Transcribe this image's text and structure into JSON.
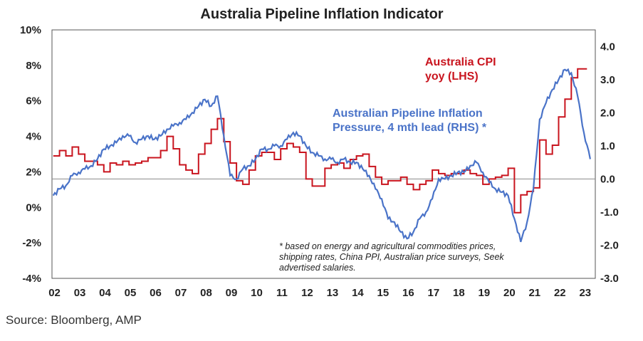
{
  "chart_data": {
    "type": "line",
    "title": "Australia Pipeline Inflation Indicator",
    "x_ticks": [
      "02",
      "03",
      "04",
      "05",
      "06",
      "07",
      "08",
      "09",
      "10",
      "11",
      "12",
      "13",
      "14",
      "15",
      "16",
      "17",
      "18",
      "19",
      "20",
      "21",
      "22",
      "23"
    ],
    "y_left": {
      "ticks": [
        "10%",
        "8%",
        "6%",
        "4%",
        "2%",
        "0%",
        "-2%",
        "-4%"
      ],
      "min": -4,
      "max": 10
    },
    "y_right": {
      "ticks": [
        "4.0",
        "3.0",
        "2.0",
        "1.0",
        "0.0",
        "-1.0",
        "-2.0",
        "-3.0"
      ],
      "min": -3,
      "max": 4.5
    },
    "baseline_right": 0.0,
    "series": [
      {
        "name": "Australia CPI yoy (LHS)",
        "label_lines": [
          "Australia CPI",
          "yoy (LHS)"
        ],
        "axis": "left",
        "color": "#c9141e",
        "step": true,
        "x": [
          2002.0,
          2002.25,
          2002.5,
          2002.75,
          2003.0,
          2003.25,
          2003.5,
          2003.75,
          2004.0,
          2004.25,
          2004.5,
          2004.75,
          2005.0,
          2005.25,
          2005.5,
          2005.75,
          2006.0,
          2006.25,
          2006.5,
          2006.75,
          2007.0,
          2007.25,
          2007.5,
          2007.75,
          2008.0,
          2008.25,
          2008.5,
          2008.75,
          2009.0,
          2009.25,
          2009.5,
          2009.75,
          2010.0,
          2010.25,
          2010.5,
          2010.75,
          2011.0,
          2011.25,
          2011.5,
          2011.75,
          2012.0,
          2012.25,
          2012.5,
          2012.75,
          2013.0,
          2013.25,
          2013.5,
          2013.75,
          2014.0,
          2014.25,
          2014.5,
          2014.75,
          2015.0,
          2015.25,
          2015.5,
          2015.75,
          2016.0,
          2016.25,
          2016.5,
          2016.75,
          2017.0,
          2017.25,
          2017.5,
          2017.75,
          2018.0,
          2018.25,
          2018.5,
          2018.75,
          2019.0,
          2019.25,
          2019.5,
          2019.75,
          2020.0,
          2020.25,
          2020.5,
          2020.75,
          2021.0,
          2021.25,
          2021.5,
          2021.75,
          2022.0,
          2022.25,
          2022.5,
          2022.75,
          2023.0
        ],
        "values": [
          2.9,
          3.2,
          2.9,
          3.4,
          3.0,
          2.6,
          2.6,
          2.4,
          2.0,
          2.5,
          2.4,
          2.6,
          2.4,
          2.5,
          2.6,
          2.8,
          2.8,
          3.2,
          4.0,
          3.3,
          2.4,
          2.1,
          1.9,
          3.0,
          3.6,
          4.4,
          5.0,
          3.7,
          2.5,
          1.5,
          1.3,
          2.1,
          2.9,
          3.1,
          3.1,
          2.7,
          3.3,
          3.6,
          3.4,
          3.1,
          1.6,
          1.2,
          1.2,
          2.2,
          2.4,
          2.5,
          2.2,
          2.7,
          2.9,
          3.0,
          2.3,
          1.7,
          1.3,
          1.5,
          1.5,
          1.7,
          1.3,
          1.0,
          1.3,
          1.5,
          2.1,
          1.9,
          1.8,
          1.9,
          1.9,
          2.1,
          1.9,
          1.8,
          1.3,
          1.6,
          1.7,
          1.8,
          2.2,
          -0.3,
          0.7,
          0.9,
          1.1,
          3.8,
          3.0,
          3.5,
          5.1,
          6.1,
          7.3,
          7.8,
          7.8
        ]
      },
      {
        "name": "Australian Pipeline Inflation Pressure, 4 mth lead (RHS) *",
        "label_lines": [
          "Australian Pipeline Inflation",
          "Pressure, 4 mth lead (RHS) *"
        ],
        "axis": "right",
        "color": "#4a73c8",
        "x": [
          2002.0,
          2002.25,
          2002.5,
          2002.75,
          2003.0,
          2003.25,
          2003.5,
          2003.75,
          2004.0,
          2004.25,
          2004.5,
          2004.75,
          2005.0,
          2005.25,
          2005.5,
          2005.75,
          2006.0,
          2006.25,
          2006.5,
          2006.75,
          2007.0,
          2007.25,
          2007.5,
          2007.75,
          2008.0,
          2008.25,
          2008.5,
          2008.75,
          2009.0,
          2009.25,
          2009.5,
          2009.75,
          2010.0,
          2010.25,
          2010.5,
          2010.75,
          2011.0,
          2011.25,
          2011.5,
          2011.75,
          2012.0,
          2012.25,
          2012.5,
          2012.75,
          2013.0,
          2013.25,
          2013.5,
          2013.75,
          2014.0,
          2014.25,
          2014.5,
          2014.75,
          2015.0,
          2015.25,
          2015.5,
          2015.75,
          2016.0,
          2016.25,
          2016.5,
          2016.75,
          2017.0,
          2017.25,
          2017.5,
          2017.75,
          2018.0,
          2018.25,
          2018.5,
          2018.75,
          2019.0,
          2019.25,
          2019.5,
          2019.75,
          2020.0,
          2020.25,
          2020.5,
          2020.75,
          2021.0,
          2021.25,
          2021.5,
          2021.75,
          2022.0,
          2022.25,
          2022.5,
          2022.75,
          2023.0,
          2023.25
        ],
        "values": [
          -0.5,
          -0.3,
          -0.2,
          0.1,
          0.2,
          0.3,
          0.4,
          0.6,
          0.9,
          1.0,
          1.1,
          1.3,
          1.3,
          1.1,
          1.2,
          1.3,
          1.2,
          1.3,
          1.5,
          1.6,
          1.7,
          1.8,
          2.0,
          2.2,
          2.4,
          2.2,
          2.5,
          1.3,
          0.1,
          0.0,
          0.3,
          0.4,
          0.6,
          0.9,
          0.9,
          1.0,
          1.0,
          1.2,
          1.4,
          1.3,
          1.0,
          0.8,
          0.7,
          0.6,
          0.6,
          0.5,
          0.6,
          0.5,
          0.5,
          0.3,
          0.1,
          -0.3,
          -0.6,
          -1.2,
          -1.3,
          -1.6,
          -1.8,
          -1.6,
          -1.2,
          -1.0,
          -0.6,
          0.0,
          0.0,
          0.1,
          0.2,
          0.2,
          0.4,
          0.5,
          0.2,
          -0.1,
          -0.3,
          -0.4,
          -0.5,
          -1.2,
          -1.9,
          -1.3,
          -0.3,
          1.8,
          2.3,
          2.7,
          3.0,
          3.3,
          3.2,
          2.5,
          1.4,
          0.6
        ]
      }
    ],
    "footnote_lines": [
      "* based on energy and agricultural commodities prices,",
      "shipping rates, China PPI, Australian price surveys, Seek",
      "advertised salaries."
    ]
  },
  "source": "Source: Bloomberg, AMP"
}
